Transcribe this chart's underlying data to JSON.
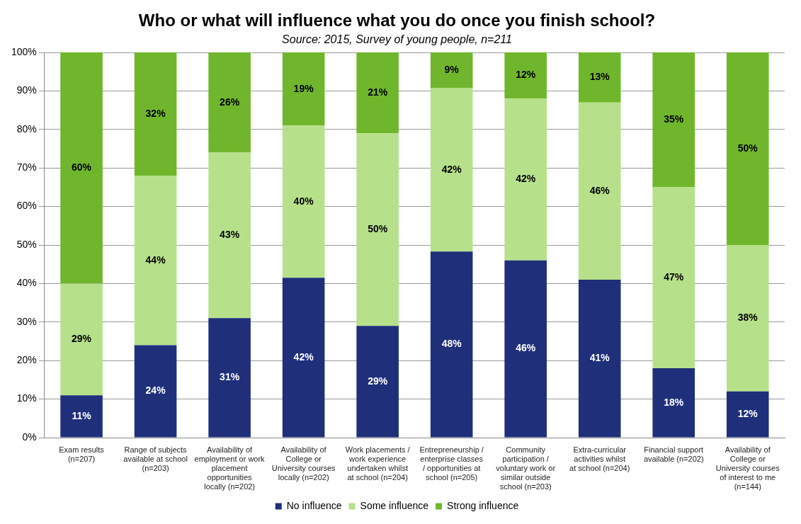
{
  "chart_data": {
    "type": "bar",
    "stacked": true,
    "title": "Who or what will influence what you do once you finish school?",
    "subtitle": "Source: 2015, Survey of young people, n=211",
    "categories": [
      "Exam results (n=207)",
      "Range of subjects available at school (n=203)",
      "Availability of employment or work placement opportunities locally (n=202)",
      "Availability of College or University courses locally (n=202)",
      "Work placements / work experience undertaken whilst at school (n=204)",
      "Entrepreneurship / enterprise classes / opportunities at school (n=205)",
      "Community participation / voluntary work or similar outside school (n=203)",
      "Extra-curricular activities whilst at school (n=204)",
      "Financial support available (n=202)",
      "Availability of College or University courses of interest to me (n=144)"
    ],
    "series": [
      {
        "name": "No influence",
        "color": "#1f2f7a",
        "values": [
          11,
          24,
          31,
          41.5,
          29,
          48.3,
          46,
          41,
          18,
          12
        ],
        "value_labels": [
          "11%",
          "24%",
          "31%",
          "42%",
          "29%",
          "48%",
          "46%",
          "41%",
          "18%",
          "12%"
        ]
      },
      {
        "name": "Some influence",
        "color": "#b7e08a",
        "values": [
          29,
          44,
          43,
          39.5,
          50,
          42.4,
          42,
          46,
          47,
          38
        ],
        "value_labels": [
          "29%",
          "44%",
          "43%",
          "40%",
          "50%",
          "42%",
          "42%",
          "46%",
          "47%",
          "38%"
        ]
      },
      {
        "name": "Strong influence",
        "color": "#70b62c",
        "values": [
          60,
          32,
          26,
          19,
          21,
          9.3,
          12,
          13,
          35,
          50
        ],
        "value_labels": [
          "60%",
          "32%",
          "26%",
          "19%",
          "21%",
          "9%",
          "12%",
          "13%",
          "35%",
          "50%"
        ]
      }
    ],
    "ylim": [
      0,
      100
    ],
    "yticks": [
      {
        "value": 0,
        "label": "0%"
      },
      {
        "value": 10,
        "label": "10%"
      },
      {
        "value": 20,
        "label": "20%"
      },
      {
        "value": 30,
        "label": "30%"
      },
      {
        "value": 40,
        "label": "40%"
      },
      {
        "value": 50,
        "label": "50%"
      },
      {
        "value": 60,
        "label": "60%"
      },
      {
        "value": 70,
        "label": "70%"
      },
      {
        "value": 80,
        "label": "80%"
      },
      {
        "value": 90,
        "label": "90%"
      },
      {
        "value": 100,
        "label": "100%"
      }
    ],
    "grid": "y",
    "legend": "bottom"
  }
}
